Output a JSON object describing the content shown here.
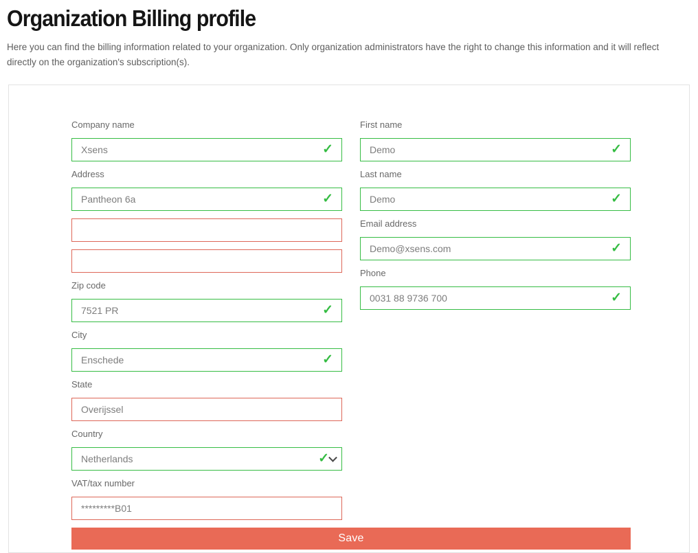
{
  "header": {
    "title": "Organization Billing profile",
    "description": "Here you can find the billing information related to your organization. Only organization administrators have the right to change this information and it will reflect directly on the organization's subscription(s)."
  },
  "colors": {
    "valid_green": "#35BC43",
    "invalid_red": "#DD6657",
    "save_button_bg": "#E96A56",
    "caret_gray": "#4a4a4a"
  },
  "icons": {
    "check": "✓"
  },
  "form": {
    "columns": {
      "left": [
        {
          "name": "company-name",
          "label": "Company name",
          "value": "Xsens",
          "status": "valid",
          "control": "text"
        },
        {
          "name": "address",
          "label": "Address",
          "value": "Pantheon 6a",
          "status": "valid",
          "control": "text"
        },
        {
          "name": "address-line-2",
          "label": "",
          "value": "",
          "status": "invalid",
          "control": "text"
        },
        {
          "name": "address-line-3",
          "label": "",
          "value": "",
          "status": "invalid",
          "control": "text"
        },
        {
          "name": "zip-code",
          "label": "Zip code",
          "value": "7521 PR",
          "status": "valid",
          "control": "text"
        },
        {
          "name": "city",
          "label": "City",
          "value": "Enschede",
          "status": "valid",
          "control": "text"
        },
        {
          "name": "state",
          "label": "State",
          "value": "Overijssel",
          "status": "invalid",
          "control": "text"
        },
        {
          "name": "country",
          "label": "Country",
          "value": "Netherlands",
          "status": "valid",
          "control": "select"
        },
        {
          "name": "vat-tax-number",
          "label": "VAT/tax number",
          "value": "*********B01",
          "status": "invalid",
          "control": "text"
        }
      ],
      "right": [
        {
          "name": "first-name",
          "label": "First name",
          "value": "Demo",
          "status": "valid",
          "control": "text"
        },
        {
          "name": "last-name",
          "label": "Last name",
          "value": "Demo",
          "status": "valid",
          "control": "text"
        },
        {
          "name": "email-address",
          "label": "Email address",
          "value": "Demo@xsens.com",
          "status": "valid",
          "control": "text"
        },
        {
          "name": "phone",
          "label": "Phone",
          "value": "0031 88 9736 700",
          "status": "valid",
          "control": "text"
        }
      ]
    },
    "save_label": "Save"
  }
}
